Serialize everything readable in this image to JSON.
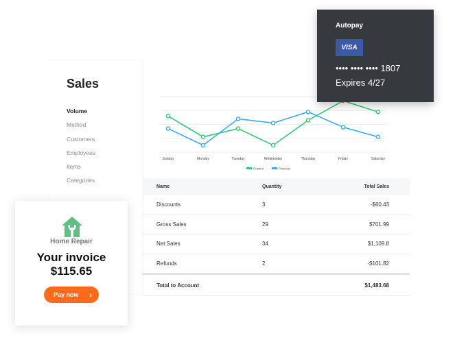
{
  "sales": {
    "title": "Sales",
    "nav": [
      "Volume",
      "Method",
      "Customers",
      "Employees",
      "Items",
      "Categories"
    ],
    "active": 0
  },
  "chart_data": {
    "type": "line",
    "categories": [
      "Sunday",
      "Monday",
      "Tuesday",
      "Wednesday",
      "Thursday",
      "Friday",
      "Saturday"
    ],
    "series": [
      {
        "name": "Current",
        "color": "#2ecc71",
        "values": [
          2.6,
          1.1,
          1.7,
          0.5,
          2.3,
          3.7,
          2.9
        ]
      },
      {
        "name": "Previous",
        "color": "#33aaff",
        "values": [
          1.7,
          0.5,
          2.4,
          2.1,
          2.9,
          1.8,
          1.1
        ]
      }
    ],
    "ylim": [
      0,
      4
    ],
    "grid": true,
    "legend": "bottom"
  },
  "table": {
    "headers": [
      "Name",
      "Quantity",
      "Total Sales"
    ],
    "rows": [
      [
        "Discounts",
        "3",
        "-$60.43"
      ],
      [
        "Gross Sales",
        "29",
        "$701.99"
      ],
      [
        "Net Sales",
        "34",
        "$1,109.8"
      ],
      [
        "Refunds",
        "2",
        "-$101.82"
      ]
    ],
    "total": {
      "label": "Total to Account",
      "value": "$1,483.68"
    }
  },
  "invoice": {
    "brand": "Home Repair",
    "title": "Your invoice",
    "amount": "$115.65",
    "pay": "Pay now",
    "chevron": "›",
    "accent": "#ff6b1a",
    "icon": "house-wrench-icon"
  },
  "autopay": {
    "title": "Autopay",
    "card_brand": "VISA",
    "number": "•••• •••• •••• 1807",
    "expires": "Expires 4/27"
  }
}
